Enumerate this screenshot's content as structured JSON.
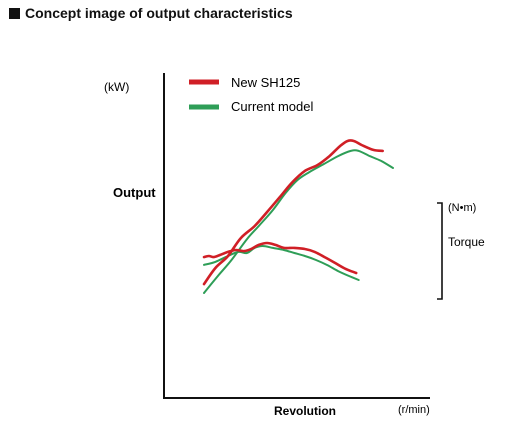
{
  "title": "Concept image of output characteristics",
  "chart_data": {
    "type": "line",
    "title": "Concept image of output characteristics",
    "xlabel": "Revolution",
    "x_unit": "(r/min)",
    "ylabel": "Output",
    "y_unit_left": "(kW)",
    "ylabel_right": "Torque",
    "y_unit_right": "(N•m)",
    "grid": false,
    "legend_placement": "top-left",
    "scale_note": "Concept image: no numeric ticks; values are relative (x and y on 0–100 relative scale)",
    "xlim": [
      0,
      100
    ],
    "ylim": [
      0,
      100
    ],
    "series": [
      {
        "name": "New SH125",
        "group": "output",
        "color": "#d01f26",
        "points": [
          [
            14.8,
            42.2
          ],
          [
            19.0,
            48.1
          ],
          [
            23.7,
            52.6
          ],
          [
            28.4,
            59.2
          ],
          [
            33.6,
            63.7
          ],
          [
            38.2,
            68.9
          ],
          [
            42.9,
            74.4
          ],
          [
            47.5,
            79.9
          ],
          [
            52.2,
            84.1
          ],
          [
            56.9,
            86.3
          ],
          [
            61.3,
            89.6
          ],
          [
            65.2,
            93.3
          ],
          [
            68.0,
            95.2
          ],
          [
            70.3,
            95.2
          ],
          [
            73.2,
            93.7
          ],
          [
            77.5,
            91.9
          ],
          [
            81.0,
            91.5
          ]
        ]
      },
      {
        "name": "Current model",
        "group": "output",
        "color": "#2e9e57",
        "points": [
          [
            14.8,
            38.9
          ],
          [
            20.3,
            45.6
          ],
          [
            25.0,
            51.1
          ],
          [
            30.7,
            58.8
          ],
          [
            35.1,
            63.7
          ],
          [
            40.3,
            69.6
          ],
          [
            45.0,
            75.9
          ],
          [
            49.4,
            80.7
          ],
          [
            53.9,
            83.7
          ],
          [
            59.3,
            86.7
          ],
          [
            64.5,
            89.6
          ],
          [
            69.2,
            91.5
          ],
          [
            72.1,
            91.5
          ],
          [
            76.2,
            89.6
          ],
          [
            80.4,
            87.8
          ],
          [
            84.8,
            85.2
          ]
        ]
      },
      {
        "name": "New SH125",
        "group": "torque",
        "color": "#d01f26",
        "points": [
          [
            14.8,
            52.2
          ],
          [
            16.6,
            52.6
          ],
          [
            18.5,
            52.2
          ],
          [
            20.8,
            53.0
          ],
          [
            23.7,
            54.1
          ],
          [
            26.6,
            54.8
          ],
          [
            29.7,
            54.4
          ],
          [
            32.3,
            55.2
          ],
          [
            35.1,
            56.7
          ],
          [
            38.2,
            57.4
          ],
          [
            41.3,
            56.7
          ],
          [
            44.4,
            55.6
          ],
          [
            48.3,
            55.6
          ],
          [
            52.2,
            55.2
          ],
          [
            55.8,
            54.1
          ],
          [
            59.5,
            52.2
          ],
          [
            63.4,
            50.0
          ],
          [
            67.3,
            47.8
          ],
          [
            71.2,
            46.3
          ]
        ]
      },
      {
        "name": "Current model",
        "group": "torque",
        "color": "#2e9e57",
        "points": [
          [
            14.8,
            49.3
          ],
          [
            19.0,
            50.4
          ],
          [
            23.7,
            52.6
          ],
          [
            27.6,
            54.1
          ],
          [
            30.7,
            53.7
          ],
          [
            33.6,
            55.6
          ],
          [
            36.5,
            56.3
          ],
          [
            40.3,
            55.6
          ],
          [
            44.4,
            54.8
          ],
          [
            48.3,
            53.7
          ],
          [
            52.2,
            52.6
          ],
          [
            56.3,
            51.1
          ],
          [
            60.3,
            49.3
          ],
          [
            64.5,
            47.0
          ],
          [
            68.5,
            45.2
          ],
          [
            72.1,
            43.7
          ]
        ]
      }
    ]
  }
}
